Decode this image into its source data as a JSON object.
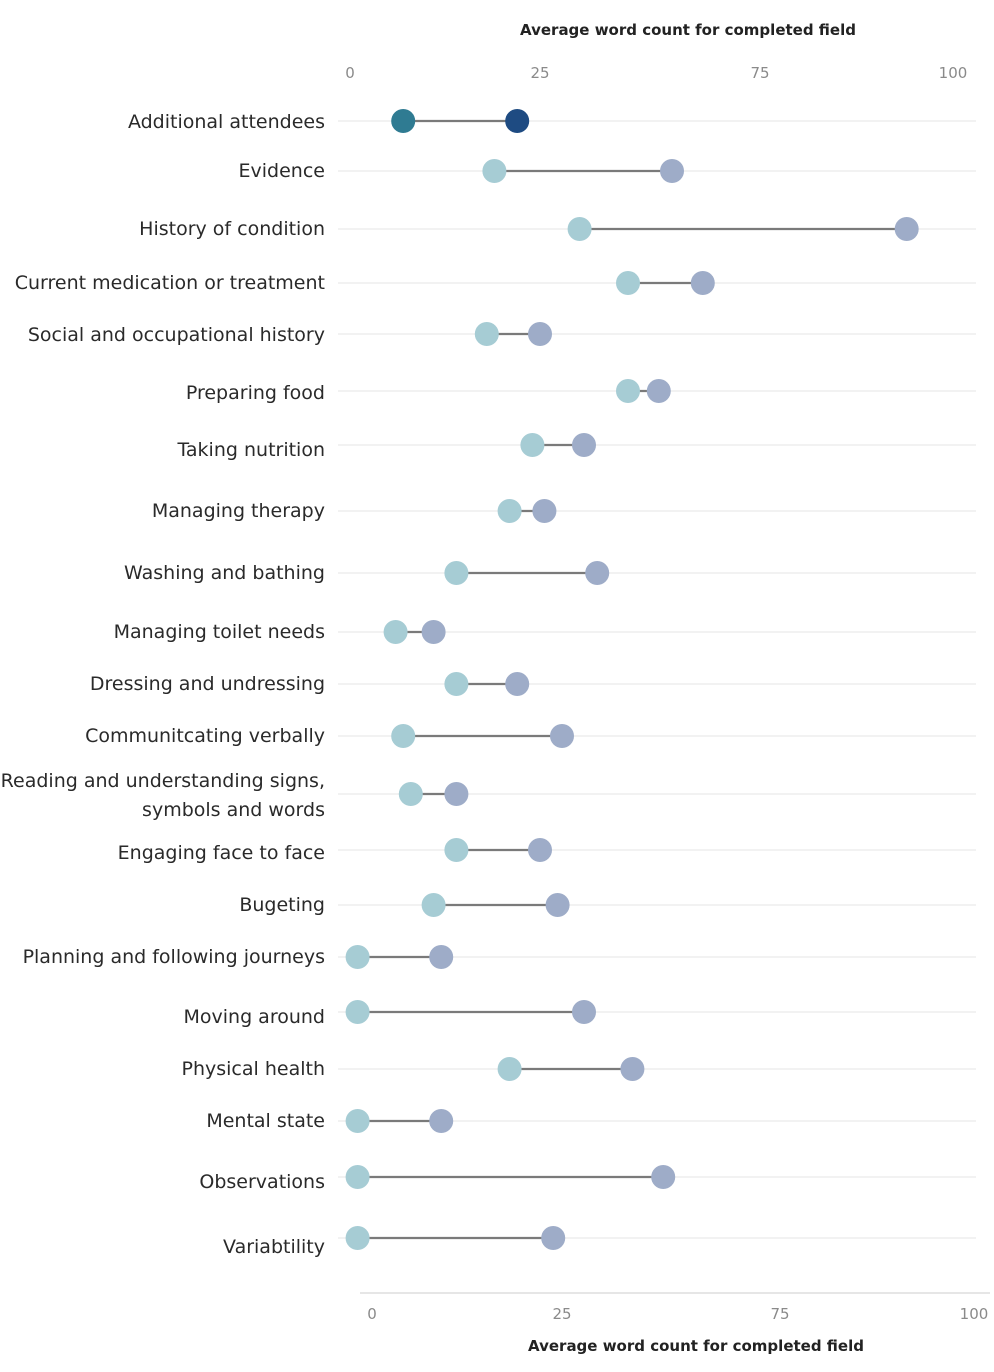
{
  "chart_data": {
    "type": "dumbbell",
    "top_axis_title": "Average word count for completed field",
    "bottom_axis_title": "Average word count for completed field",
    "x_ticks": [
      0,
      25,
      75,
      100
    ],
    "categories": [
      [
        "Additional attendees"
      ],
      [
        "Evidence"
      ],
      [
        "History of condition"
      ],
      [
        "Current medication or treatment"
      ],
      [
        "Social and occupational history"
      ],
      [
        "Preparing food"
      ],
      [
        "Taking nutrition"
      ],
      [
        "Managing therapy"
      ],
      [
        "Washing and bathing"
      ],
      [
        "Managing toilet needs"
      ],
      [
        "Dressing and undressing"
      ],
      [
        "Communitcating verbally"
      ],
      [
        "Reading and understanding signs,",
        "symbols and words"
      ],
      [
        "Engaging face to face"
      ],
      [
        "Bugeting"
      ],
      [
        "Planning and following journeys"
      ],
      [
        "Moving around"
      ],
      [
        "Physical health"
      ],
      [
        "Mental state"
      ],
      [
        "Observations"
      ],
      [
        "Variabtility"
      ]
    ],
    "series": [
      {
        "values": [
          7,
          19,
          34,
          45,
          18,
          45,
          24,
          21,
          14,
          6,
          14,
          7,
          8,
          14,
          11,
          1,
          1,
          21,
          1,
          1,
          1
        ]
      },
      {
        "values": [
          22,
          55,
          94,
          62,
          25,
          52,
          35,
          26,
          38,
          11,
          22,
          30,
          14,
          25,
          29,
          12,
          35,
          46,
          12,
          53,
          28
        ]
      }
    ],
    "highlight_index": 0,
    "colors": {
      "start": "#a6ccd4",
      "end": "#9eacc8",
      "highlight_start": "#2f7b92",
      "highlight_end": "#1e4b82",
      "connector": "#7a7a7a",
      "grid": "#e4e4e4"
    }
  }
}
